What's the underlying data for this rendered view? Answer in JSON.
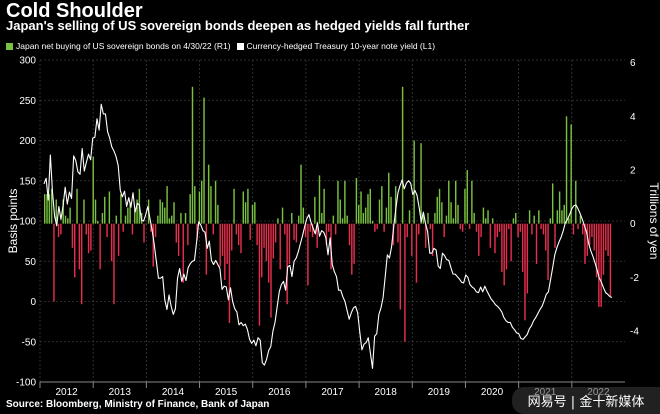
{
  "title": "Cold Shoulder",
  "subtitle": "Japan's selling of US sovereign bonds deepen as hedged yields fall further",
  "source": "Source: Bloomberg, Ministry of Finance, Bank of Japan",
  "watermark": "网易号 | 金十新媒体",
  "colors": {
    "background": "#000000",
    "bar_positive": "#7ac142",
    "bar_negative": "#e5304d",
    "line": "#ffffff",
    "grid": "#3a3a3a"
  },
  "chart_data": {
    "type": "bar",
    "grid": true,
    "legend_placement": "top-left",
    "x_tick_labels": [
      "2012",
      "2013",
      "2014",
      "2015",
      "2016",
      "2017",
      "2018",
      "2019",
      "2020",
      "2021",
      "2022"
    ],
    "left_axis": {
      "label": "Basis points",
      "ylim": [
        -100,
        300
      ],
      "ticks": [
        -100,
        -50,
        0,
        50,
        100,
        150,
        200,
        250,
        300
      ]
    },
    "right_axis": {
      "label": "Trillions of yen",
      "ylim": [
        -5.9,
        6.1
      ],
      "ticks": [
        -4,
        -2,
        0,
        2,
        4,
        6
      ]
    },
    "series": [
      {
        "name": "Japan net buying of US sovereign bonds on 4/30/22 (R1)",
        "axis": "right",
        "kind": "bar",
        "values": [
          1.1,
          1.1,
          1.1,
          1.3,
          -2.9,
          0.9,
          -0.5,
          -0.4,
          0.9,
          0.3,
          0.2,
          0.6,
          -0.9,
          -2.0,
          1.3,
          -1.7,
          -3.0,
          0.9,
          -0.4,
          -1.1,
          -1.0,
          2.5,
          0.9,
          0.1,
          -1.7,
          0.4,
          1.0,
          -0.5,
          1.2,
          -1.4,
          -3.0,
          0.3,
          -1.2,
          1.1,
          -0.3,
          0.3,
          0.6,
          0.8,
          -0.4,
          0.5,
          0.9,
          1.3,
          0.4,
          -0.7,
          0.0,
          0.9,
          -0.3,
          -1.6,
          -0.5,
          0.3,
          0.9,
          0.8,
          0.6,
          1.4,
          0.2,
          0.3,
          0.8,
          -0.7,
          -1.2,
          0.4,
          -2.2,
          0.4,
          -0.8,
          1.1,
          5.1,
          1.4,
          -0.6,
          1.2,
          1.6,
          4.7,
          -1.9,
          2.2,
          1.4,
          -0.4,
          1.6,
          0.7,
          -1.6,
          -1.2,
          -2.1,
          -1.5,
          -3.7,
          -1.0,
          1.3,
          -0.4,
          -0.8,
          -1.1,
          1.2,
          0.8,
          1.3,
          -0.6,
          0.7,
          0.8,
          -0.8,
          -3.8,
          -2.0,
          -0.9,
          -1.4,
          -2.2,
          -3.5,
          -1.3,
          -0.7,
          0.2,
          -1.7,
          0.6,
          -0.4,
          -3.0,
          -1.5,
          0.4,
          -0.6,
          -0.7,
          0.3,
          2.2,
          0.6,
          -0.5,
          -2.3,
          -0.3,
          -0.5,
          1.0,
          -0.9,
          1.8,
          0.4,
          1.3,
          -0.8,
          -0.3,
          -1.7,
          0.3,
          -0.4,
          1.6,
          0.9,
          0.2,
          1.6,
          0.3,
          -0.8,
          -1.9,
          -1.5,
          1.7,
          0.7,
          1.2,
          0.4,
          0.6,
          1.1,
          1.3,
          0.1,
          -0.3,
          -0.2,
          0.9,
          1.4,
          -0.3,
          0.6,
          1.9,
          1.0,
          -0.8,
          1.4,
          -0.7,
          -3.2,
          5.1,
          -4.4,
          -0.5,
          0.5,
          -1.2,
          3.1,
          -2.2,
          -0.4,
          3.0,
          0.3,
          -0.9,
          0.4,
          -0.2,
          -1.2,
          0.4,
          1.0,
          1.3,
          0.8,
          -0.5,
          0.3,
          1.6,
          0.8,
          0.2,
          1.6,
          0.7,
          -0.2,
          -0.3,
          1.3,
          2.0,
          -0.2,
          1.6,
          0.4,
          -0.3,
          -1.2,
          -0.5,
          0.6,
          0.2,
          0.5,
          -0.9,
          0.2,
          -1.1,
          -0.5,
          -0.3,
          -1.8,
          -2.3,
          -1.7,
          -0.2,
          -1.4,
          0.2,
          0.4,
          -0.5,
          -0.3,
          -1.8,
          -3.6,
          -2.6,
          0.5,
          -0.4,
          0.3,
          -1.5,
          0.5,
          -0.2,
          -0.4,
          -1.0,
          -2.1,
          0.2,
          1.5,
          -0.9,
          0.5,
          1.2,
          0.5,
          0.7,
          4.0,
          0.2,
          3.7,
          -0.4,
          1.6,
          -0.2,
          0.3,
          -0.4,
          -1.5,
          -1.2,
          -0.8,
          -0.5,
          -1.0,
          -2.0,
          -3.1,
          -3.1,
          -1.9,
          -1.0,
          -1.2,
          -2.7
        ]
      },
      {
        "name": "Currency-hedged Treasury 10-year note yield (L1)",
        "axis": "left",
        "kind": "line",
        "values": [
          146,
          153,
          126,
          182,
          136,
          106,
          94,
          118,
          102,
          119,
          142,
          121,
          136,
          128,
          181,
          175,
          161,
          158,
          190,
          162,
          173,
          183,
          176,
          203,
          204,
          227,
          213,
          245,
          233,
          233,
          211,
          203,
          192,
          187,
          180,
          169,
          138,
          130,
          137,
          118,
          129,
          117,
          135,
          111,
          122,
          120,
          101,
          100,
          108,
          118,
          103,
          89,
          71,
          50,
          29,
          29,
          31,
          2,
          -10,
          8,
          -6,
          -16,
          -9,
          29,
          41,
          25,
          34,
          26,
          42,
          47,
          50,
          51,
          74,
          99,
          95,
          88,
          86,
          66,
          75,
          51,
          46,
          51,
          46,
          41,
          15,
          19,
          18,
          2,
          17,
          0,
          -9,
          -13,
          -29,
          -26,
          -30,
          -28,
          -35,
          -47,
          -52,
          -48,
          -55,
          -45,
          -48,
          -76,
          -79,
          -72,
          -61,
          -56,
          -37,
          -26,
          -7,
          12,
          21,
          25,
          14,
          43,
          45,
          31,
          50,
          54,
          62,
          72,
          82,
          93,
          103,
          108,
          98,
          91,
          84,
          98,
          81,
          88,
          86,
          79,
          58,
          79,
          46,
          37,
          31,
          14,
          14,
          6,
          0,
          -11,
          -22,
          -14,
          -8,
          -6,
          -14,
          -38,
          -60,
          -53,
          -51,
          -45,
          -64,
          -83,
          -43,
          -40,
          -16,
          -8,
          5,
          31,
          58,
          54,
          68,
          93,
          115,
          135,
          144,
          151,
          140,
          147,
          150,
          147,
          133,
          138,
          132,
          117,
          99,
          111,
          97,
          87,
          60,
          60,
          66,
          64,
          44,
          41,
          60,
          57,
          52,
          51,
          42,
          34,
          34,
          31,
          28,
          24,
          23,
          33,
          30,
          21,
          18,
          16,
          12,
          11,
          18,
          12,
          19,
          13,
          8,
          3,
          0,
          -4,
          -6,
          -9,
          -13,
          -20,
          -24,
          -26,
          -26,
          -32,
          -35,
          -39,
          -40,
          -46,
          -47,
          -44,
          -41,
          -34,
          -30,
          -24,
          -20,
          -15,
          -10,
          -6,
          1,
          9,
          12,
          27,
          42,
          58,
          67,
          74,
          80,
          88,
          98,
          102,
          108,
          115,
          119,
          120,
          115,
          109,
          102,
          94,
          86,
          72,
          63,
          56,
          48,
          39,
          29,
          24,
          17,
          11,
          9,
          6,
          5
        ]
      }
    ]
  }
}
